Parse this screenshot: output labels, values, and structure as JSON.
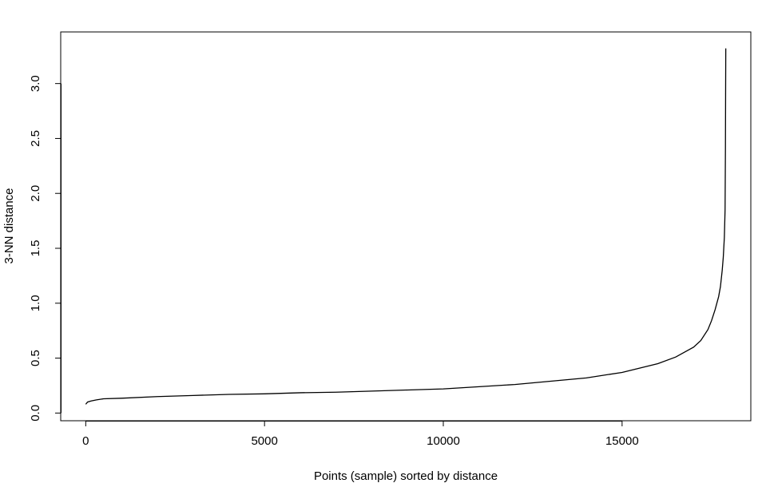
{
  "chart_data": {
    "type": "line",
    "title": "",
    "xlabel": "Points (sample) sorted by distance",
    "ylabel": "3-NN distance",
    "xlim": [
      -700,
      18600
    ],
    "ylim": [
      -0.07,
      3.47
    ],
    "x_ticks": [
      0,
      5000,
      10000,
      15000
    ],
    "x_tick_labels": [
      "0",
      "5000",
      "10000",
      "15000"
    ],
    "y_ticks": [
      0.0,
      0.5,
      1.0,
      1.5,
      2.0,
      2.5,
      3.0
    ],
    "y_tick_labels": [
      "0.0",
      "0.5",
      "1.0",
      "1.5",
      "2.0",
      "2.5",
      "3.0"
    ],
    "grid": false,
    "legend": "none",
    "line_color": "#000000",
    "series": [
      {
        "x": [
          0,
          50,
          150,
          300,
          500,
          1000,
          2000,
          3000,
          4000,
          5000,
          6000,
          7000,
          8000,
          9000,
          10000,
          11000,
          12000,
          13000,
          14000,
          15000,
          15500,
          16000,
          16500,
          17000,
          17200,
          17400,
          17500,
          17600,
          17700,
          17750,
          17800,
          17830,
          17860,
          17880,
          17890,
          17895,
          17900
        ],
        "y": [
          0.08,
          0.1,
          0.11,
          0.12,
          0.13,
          0.135,
          0.15,
          0.16,
          0.17,
          0.175,
          0.185,
          0.19,
          0.2,
          0.21,
          0.22,
          0.24,
          0.26,
          0.29,
          0.32,
          0.37,
          0.41,
          0.45,
          0.51,
          0.6,
          0.66,
          0.76,
          0.84,
          0.94,
          1.06,
          1.15,
          1.3,
          1.42,
          1.6,
          1.85,
          2.4,
          2.9,
          3.32
        ]
      }
    ]
  }
}
